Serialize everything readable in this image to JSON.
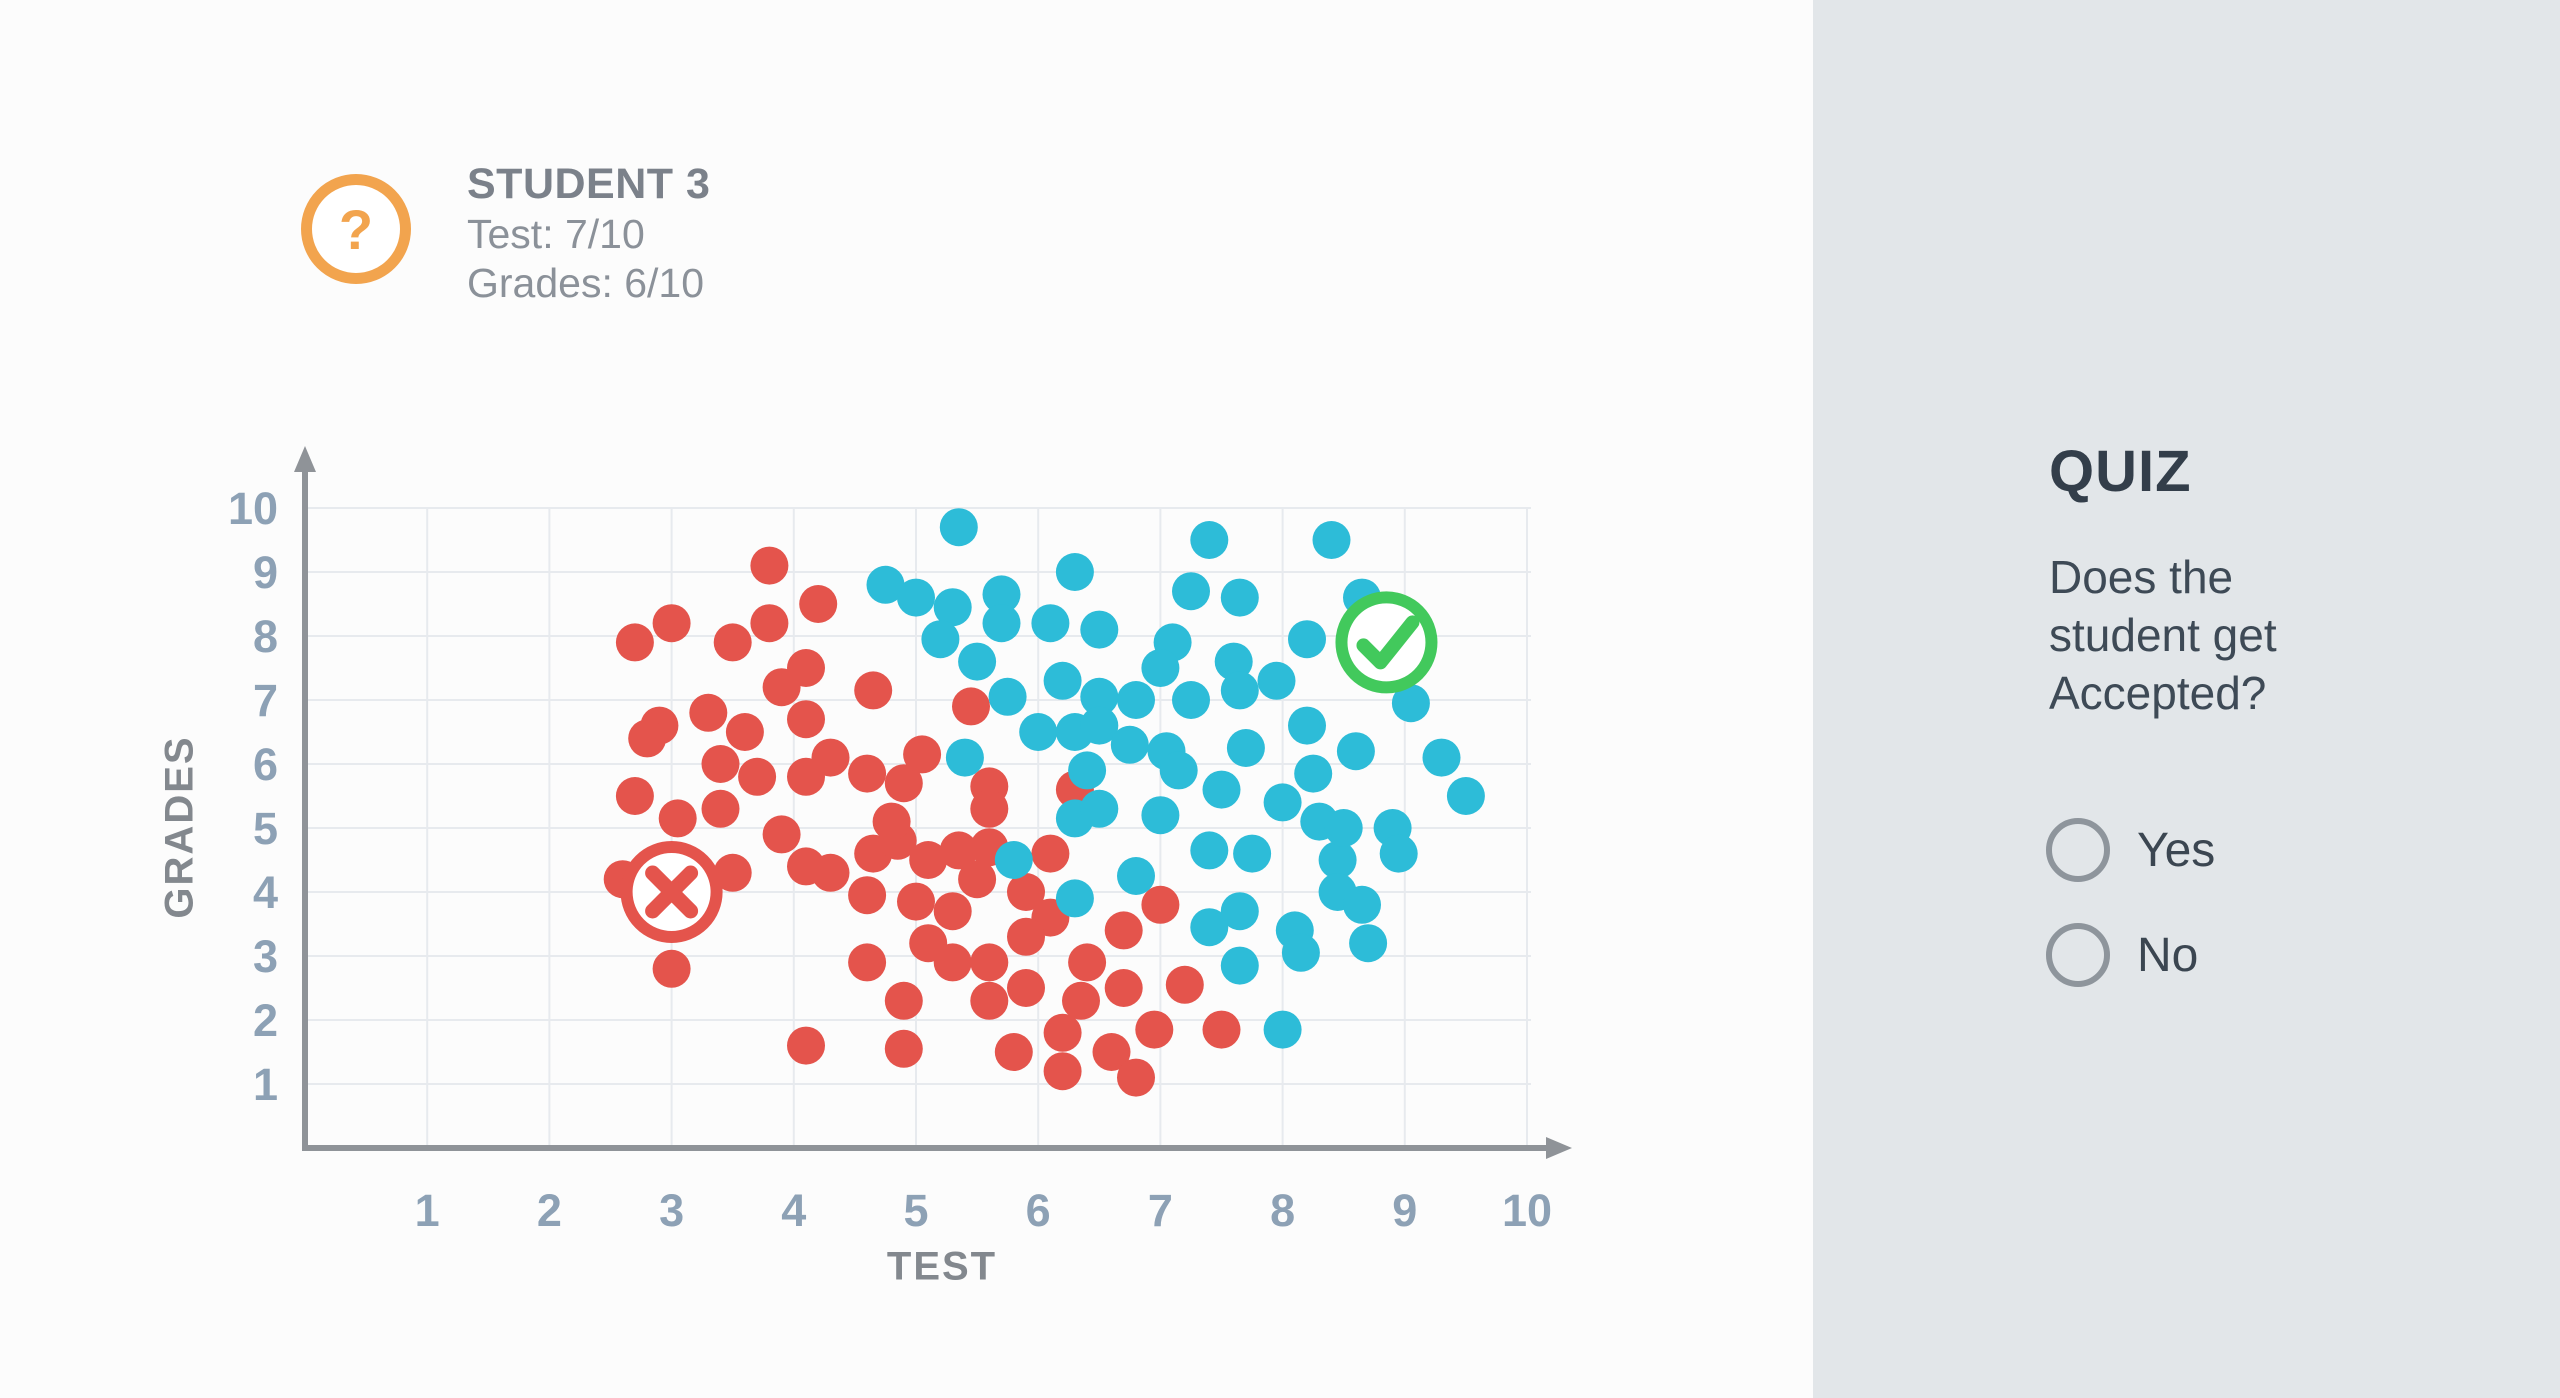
{
  "student_card": {
    "icon": "question-mark",
    "title": "STUDENT 3",
    "lines": [
      "Test: 7/10",
      "Grades: 6/10"
    ]
  },
  "quiz": {
    "title": "QUIZ",
    "question": "Does the student get Accepted?",
    "options": [
      {
        "label": "Yes",
        "selected": false
      },
      {
        "label": "No",
        "selected": false
      }
    ]
  },
  "colors": {
    "rejected_red": "#e4544c",
    "accepted_blue": "#2dbcd8",
    "accept_marker_green": "#42c95c",
    "student_badge_orange": "#f2a44e",
    "quiz_panel_bg": "#e2e6e9",
    "dark_text": "#3e4a56",
    "muted_text": "#8b9199",
    "tick_label": "#8da1b5",
    "gridline": "#e7eaee",
    "axis": "#8f9398"
  },
  "chart_data": {
    "type": "scatter",
    "title": "",
    "xlabel": "TEST",
    "ylabel": "GRADES",
    "xlim": [
      0,
      10
    ],
    "ylim": [
      0,
      10
    ],
    "x_ticks": [
      1,
      2,
      3,
      4,
      5,
      6,
      7,
      8,
      9,
      10
    ],
    "y_ticks": [
      1,
      2,
      3,
      4,
      5,
      6,
      7,
      8,
      9,
      10
    ],
    "grid": true,
    "legend": "none",
    "series": [
      {
        "name": "rejected",
        "color": "#e4544c",
        "points": [
          [
            3.8,
            9.1
          ],
          [
            4.2,
            8.5
          ],
          [
            3.0,
            8.2
          ],
          [
            2.7,
            7.9
          ],
          [
            3.8,
            8.2
          ],
          [
            3.5,
            7.9
          ],
          [
            4.1,
            7.5
          ],
          [
            3.9,
            7.2
          ],
          [
            4.65,
            7.15
          ],
          [
            3.3,
            6.8
          ],
          [
            4.1,
            6.7
          ],
          [
            2.9,
            6.6
          ],
          [
            2.8,
            6.4
          ],
          [
            3.6,
            6.5
          ],
          [
            4.3,
            6.1
          ],
          [
            3.4,
            6.0
          ],
          [
            3.7,
            5.8
          ],
          [
            4.1,
            5.8
          ],
          [
            4.6,
            5.85
          ],
          [
            4.9,
            5.7
          ],
          [
            5.05,
            6.15
          ],
          [
            2.7,
            5.5
          ],
          [
            3.05,
            5.15
          ],
          [
            3.4,
            5.3
          ],
          [
            5.45,
            6.9
          ],
          [
            5.6,
            5.65
          ],
          [
            6.3,
            5.6
          ],
          [
            5.6,
            5.3
          ],
          [
            2.6,
            4.2
          ],
          [
            3.5,
            4.3
          ],
          [
            3.0,
            2.8
          ],
          [
            3.9,
            4.9
          ],
          [
            4.1,
            4.4
          ],
          [
            4.3,
            4.3
          ],
          [
            4.65,
            4.6
          ],
          [
            4.85,
            4.8
          ],
          [
            4.8,
            5.1
          ],
          [
            4.6,
            3.95
          ],
          [
            5.0,
            3.85
          ],
          [
            4.6,
            2.9
          ],
          [
            4.9,
            2.3
          ],
          [
            4.1,
            1.6
          ],
          [
            4.9,
            1.55
          ],
          [
            5.1,
            3.2
          ],
          [
            5.35,
            4.65
          ],
          [
            5.6,
            4.7
          ],
          [
            5.1,
            4.5
          ],
          [
            5.5,
            4.2
          ],
          [
            6.1,
            4.6
          ],
          [
            5.9,
            4.0
          ],
          [
            6.1,
            3.6
          ],
          [
            5.9,
            3.3
          ],
          [
            5.3,
            3.7
          ],
          [
            5.3,
            2.9
          ],
          [
            5.6,
            2.9
          ],
          [
            5.6,
            2.3
          ],
          [
            5.9,
            2.5
          ],
          [
            6.4,
            2.9
          ],
          [
            6.35,
            2.3
          ],
          [
            6.7,
            2.5
          ],
          [
            7.0,
            3.8
          ],
          [
            6.7,
            3.4
          ],
          [
            7.2,
            2.55
          ],
          [
            6.95,
            1.85
          ],
          [
            7.5,
            1.85
          ],
          [
            5.8,
            1.5
          ],
          [
            6.2,
            1.8
          ],
          [
            6.2,
            1.2
          ],
          [
            6.6,
            1.5
          ],
          [
            6.8,
            1.1
          ]
        ]
      },
      {
        "name": "accepted",
        "color": "#2dbcd8",
        "points": [
          [
            4.75,
            8.8
          ],
          [
            5.0,
            8.6
          ],
          [
            5.35,
            9.7
          ],
          [
            5.3,
            8.45
          ],
          [
            5.7,
            8.65
          ],
          [
            6.3,
            9.0
          ],
          [
            5.7,
            8.2
          ],
          [
            6.1,
            8.2
          ],
          [
            6.5,
            8.1
          ],
          [
            5.2,
            7.95
          ],
          [
            5.5,
            7.6
          ],
          [
            7.4,
            9.5
          ],
          [
            8.4,
            9.5
          ],
          [
            7.25,
            8.7
          ],
          [
            7.65,
            8.6
          ],
          [
            8.65,
            8.6
          ],
          [
            7.1,
            7.9
          ],
          [
            8.2,
            7.95
          ],
          [
            7.0,
            7.5
          ],
          [
            7.6,
            7.6
          ],
          [
            6.2,
            7.3
          ],
          [
            6.5,
            7.05
          ],
          [
            6.8,
            7.0
          ],
          [
            5.75,
            7.05
          ],
          [
            7.25,
            7.0
          ],
          [
            7.65,
            7.15
          ],
          [
            7.95,
            7.3
          ],
          [
            9.05,
            6.95
          ],
          [
            6.0,
            6.5
          ],
          [
            6.3,
            6.5
          ],
          [
            6.5,
            6.6
          ],
          [
            6.75,
            6.3
          ],
          [
            7.05,
            6.2
          ],
          [
            7.15,
            5.9
          ],
          [
            7.7,
            6.25
          ],
          [
            8.2,
            6.6
          ],
          [
            8.6,
            6.2
          ],
          [
            8.25,
            5.85
          ],
          [
            9.3,
            6.1
          ],
          [
            5.4,
            6.1
          ],
          [
            6.4,
            5.9
          ],
          [
            7.5,
            5.6
          ],
          [
            8.0,
            5.4
          ],
          [
            9.5,
            5.5
          ],
          [
            7.0,
            5.2
          ],
          [
            8.3,
            5.1
          ],
          [
            6.3,
            5.15
          ],
          [
            6.5,
            5.3
          ],
          [
            5.8,
            4.5
          ],
          [
            6.3,
            3.9
          ],
          [
            6.8,
            4.25
          ],
          [
            7.4,
            4.65
          ],
          [
            7.4,
            3.45
          ],
          [
            7.75,
            4.6
          ],
          [
            7.65,
            3.7
          ],
          [
            7.65,
            2.85
          ],
          [
            8.1,
            3.4
          ],
          [
            8.15,
            3.05
          ],
          [
            8.45,
            4.5
          ],
          [
            8.45,
            4.0
          ],
          [
            8.65,
            3.8
          ],
          [
            8.7,
            3.2
          ],
          [
            8.5,
            5.0
          ],
          [
            8.9,
            5.0
          ],
          [
            8.95,
            4.6
          ],
          [
            8.0,
            1.85
          ]
        ]
      }
    ],
    "annotations": [
      {
        "name": "rejected-marker",
        "shape": "circle-x",
        "color": "#e4544c",
        "x": 3.0,
        "y": 4.0
      },
      {
        "name": "accepted-marker",
        "shape": "circle-check",
        "color": "#42c95c",
        "x": 8.85,
        "y": 7.9
      }
    ]
  }
}
